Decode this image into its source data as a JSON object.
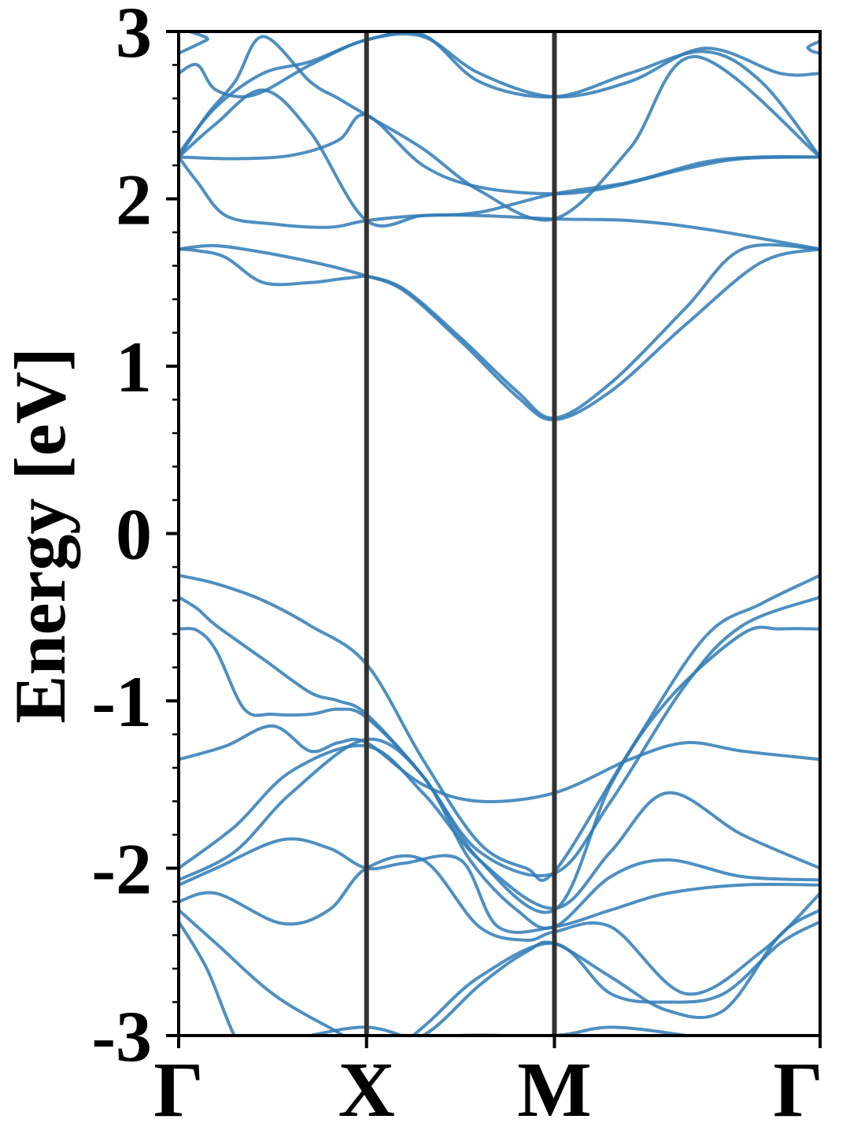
{
  "chart_data": {
    "type": "line",
    "title": "",
    "xlabel": "",
    "ylabel": "Energy [eV]",
    "ylim": [
      -3,
      3
    ],
    "y_ticks": [
      3,
      2,
      1,
      0,
      -1,
      -2,
      -3
    ],
    "y_tick_labels": [
      "3",
      "2",
      "1",
      "0",
      "-1",
      "-2",
      "-3"
    ],
    "k_points": [
      {
        "label": "Γ",
        "x": 0
      },
      {
        "label": "X",
        "x": 1
      },
      {
        "label": "M",
        "x": 2
      },
      {
        "label": "Γ",
        "x": 3.414
      }
    ],
    "xlim": [
      0,
      3.414
    ],
    "grid": false,
    "colors": {
      "band": "#2f7bb6",
      "kline": "#333333",
      "axes": "#000000"
    },
    "series": [
      {
        "x": [
          0,
          0.2,
          0.45,
          0.7,
          1.0,
          1.3,
          1.6,
          1.85,
          2.0,
          2.4,
          2.8,
          3.1,
          3.414
        ],
        "values": [
          -0.25,
          -0.3,
          -0.4,
          -0.55,
          -0.78,
          -1.35,
          -1.85,
          -2.0,
          -2.02,
          -1.3,
          -0.62,
          -0.42,
          -0.25
        ]
      },
      {
        "x": [
          0,
          0.1,
          0.2,
          0.45,
          0.7,
          0.85,
          1.0,
          1.3,
          1.6,
          2.0,
          2.3,
          2.7,
          3.0,
          3.414
        ],
        "values": [
          -0.38,
          -0.45,
          -0.55,
          -0.75,
          -0.95,
          -1.0,
          -1.08,
          -1.45,
          -1.9,
          -2.03,
          -1.6,
          -0.9,
          -0.55,
          -0.38
        ]
      },
      {
        "x": [
          0,
          0.1,
          0.2,
          0.35,
          0.5,
          0.7,
          0.85,
          1.0,
          1.3,
          1.6,
          2.0,
          2.3,
          2.6,
          3.0,
          3.2,
          3.414
        ],
        "values": [
          -0.57,
          -0.58,
          -0.7,
          -1.05,
          -1.08,
          -1.08,
          -1.05,
          -1.1,
          -1.45,
          -1.95,
          -2.25,
          -1.5,
          -1.0,
          -0.6,
          -0.57,
          -0.57
        ]
      },
      {
        "x": [
          0,
          0.25,
          0.5,
          0.7,
          0.85,
          1.0,
          1.3,
          1.6,
          2.0,
          2.4,
          2.7,
          3.0,
          3.414
        ],
        "values": [
          -1.35,
          -1.27,
          -1.15,
          -1.3,
          -1.25,
          -1.25,
          -1.5,
          -1.6,
          -1.55,
          -1.35,
          -1.25,
          -1.3,
          -1.35
        ]
      },
      {
        "x": [
          0,
          0.3,
          0.6,
          1.0,
          1.3,
          1.6,
          2.0,
          2.3,
          2.6,
          3.0,
          3.414
        ],
        "values": [
          -2.0,
          -1.75,
          -1.42,
          -1.27,
          -1.55,
          -1.95,
          -2.24,
          -1.9,
          -1.55,
          -1.8,
          -2.0
        ]
      },
      {
        "x": [
          0,
          0.3,
          0.6,
          1.0,
          1.3,
          1.55,
          1.8,
          2.0,
          2.3,
          2.6,
          3.0,
          3.414
        ],
        "values": [
          -2.07,
          -1.9,
          -1.55,
          -1.23,
          -1.45,
          -1.95,
          -2.25,
          -2.35,
          -2.05,
          -1.95,
          -2.05,
          -2.07
        ]
      },
      {
        "x": [
          0,
          0.2,
          0.55,
          0.8,
          1.0,
          1.2,
          1.5,
          1.7,
          2.0,
          2.3,
          2.6,
          3.0,
          3.414
        ],
        "values": [
          -2.1,
          -2.0,
          -1.83,
          -1.88,
          -2.0,
          -1.97,
          -1.95,
          -2.35,
          -2.35,
          -2.25,
          -2.15,
          -2.1,
          -2.1
        ]
      },
      {
        "x": [
          0,
          0.2,
          0.55,
          0.8,
          1.0,
          1.3,
          1.6,
          1.85,
          2.0,
          2.3,
          2.7,
          3.1,
          3.414
        ],
        "values": [
          -2.2,
          -2.15,
          -2.33,
          -2.25,
          -2.0,
          -1.95,
          -2.35,
          -2.43,
          -2.38,
          -2.35,
          -2.75,
          -2.5,
          -2.15
        ]
      },
      {
        "x": [
          0,
          0.2,
          0.5,
          0.8,
          1.0,
          1.3,
          1.6,
          1.85,
          2.0,
          2.3,
          2.6,
          2.9,
          3.2,
          3.414
        ],
        "values": [
          -2.25,
          -2.45,
          -2.75,
          -2.95,
          -3.05,
          -3.0,
          -2.7,
          -2.5,
          -2.45,
          -2.65,
          -2.85,
          -2.85,
          -2.4,
          -2.25
        ]
      },
      {
        "x": [
          0,
          0.15,
          0.35,
          0.6,
          1.0,
          1.3,
          1.6,
          2.0,
          2.3,
          2.6,
          2.9,
          3.2,
          3.414
        ],
        "values": [
          -2.32,
          -2.6,
          -3.1,
          -3.2,
          -3.2,
          -2.95,
          -2.65,
          -2.45,
          -2.75,
          -2.8,
          -2.75,
          -2.45,
          -2.32
        ]
      },
      {
        "x": [
          0,
          0.1,
          0.25,
          0.45,
          0.7,
          0.85,
          1.0
        ],
        "values": [
          1.7,
          1.69,
          1.65,
          1.5,
          1.5,
          1.52,
          1.54
        ]
      },
      {
        "x": [
          0,
          0.2,
          0.5,
          0.8,
          1.0
        ],
        "values": [
          1.7,
          1.72,
          1.67,
          1.6,
          1.54
        ]
      },
      {
        "x": [
          1.0,
          1.2,
          1.5,
          1.8,
          2.0,
          2.3,
          2.7,
          3.1,
          3.414
        ],
        "values": [
          1.54,
          1.45,
          1.15,
          0.82,
          0.68,
          0.85,
          1.25,
          1.62,
          1.7
        ]
      },
      {
        "x": [
          1.0,
          1.2,
          1.5,
          1.8,
          2.0,
          2.3,
          2.7,
          3.0,
          3.414
        ],
        "values": [
          1.54,
          1.46,
          1.17,
          0.85,
          0.69,
          0.9,
          1.35,
          1.7,
          1.7
        ]
      },
      {
        "x": [
          0,
          0.1,
          0.25,
          0.5,
          0.8,
          1.0,
          1.3,
          1.6,
          2.0,
          2.4,
          2.8,
          3.414
        ],
        "values": [
          2.25,
          2.1,
          1.9,
          1.85,
          1.83,
          1.87,
          1.9,
          1.9,
          1.88,
          1.87,
          1.82,
          1.7
        ]
      },
      {
        "x": [
          0,
          0.3,
          0.6,
          0.85,
          1.0,
          1.3,
          1.6,
          2.0,
          2.3,
          2.7,
          3.0,
          3.414
        ],
        "values": [
          2.25,
          2.24,
          2.26,
          2.35,
          2.5,
          2.2,
          2.07,
          2.03,
          2.07,
          2.18,
          2.24,
          2.25
        ]
      },
      {
        "x": [
          0,
          0.2,
          0.45,
          0.7,
          1.0,
          1.3,
          1.6,
          2.0,
          2.4,
          2.8,
          3.1,
          3.414
        ],
        "values": [
          2.25,
          2.45,
          2.65,
          2.4,
          1.87,
          1.9,
          1.92,
          2.03,
          2.1,
          2.22,
          2.25,
          2.25
        ]
      },
      {
        "x": [
          0,
          0.15,
          0.3,
          0.45,
          0.7,
          0.85,
          1.0,
          1.3,
          1.6,
          2.0,
          2.4,
          2.75,
          3.414
        ],
        "values": [
          2.25,
          2.5,
          2.7,
          2.97,
          2.7,
          2.6,
          2.5,
          2.3,
          2.05,
          1.88,
          2.3,
          2.85,
          2.25
        ]
      },
      {
        "x": [
          0,
          0.2,
          0.45,
          0.7,
          1.0,
          1.3,
          1.6,
          2.0,
          2.4,
          2.8,
          3.1,
          3.414
        ],
        "values": [
          2.27,
          2.55,
          2.75,
          2.82,
          2.95,
          2.98,
          2.7,
          2.61,
          2.75,
          2.88,
          2.7,
          2.25
        ]
      },
      {
        "x": [
          0,
          0.1,
          0.2,
          0.4,
          0.7,
          1.0,
          1.3,
          1.6,
          2.0,
          2.4,
          2.8,
          3.2,
          3.414
        ],
        "values": [
          2.75,
          2.8,
          2.65,
          2.62,
          2.8,
          2.95,
          2.97,
          2.75,
          2.61,
          2.7,
          2.9,
          2.75,
          2.75
        ]
      },
      {
        "x": [
          0,
          0.15,
          0.3,
          3.25,
          3.35,
          3.414
        ],
        "values": [
          2.87,
          2.95,
          3.05,
          3.05,
          2.9,
          2.87
        ]
      },
      {
        "x": [
          0.3,
          0.6,
          1.0,
          1.3
        ],
        "values": [
          -3.05,
          -3.02,
          -2.95,
          -3.05
        ]
      },
      {
        "x": [
          1.0,
          1.2,
          1.5,
          2.0,
          2.3,
          2.7,
          2.9
        ],
        "values": [
          -3.1,
          -3.05,
          -3.0,
          -3.0,
          -2.95,
          -3.0,
          -3.05
        ]
      }
    ]
  }
}
